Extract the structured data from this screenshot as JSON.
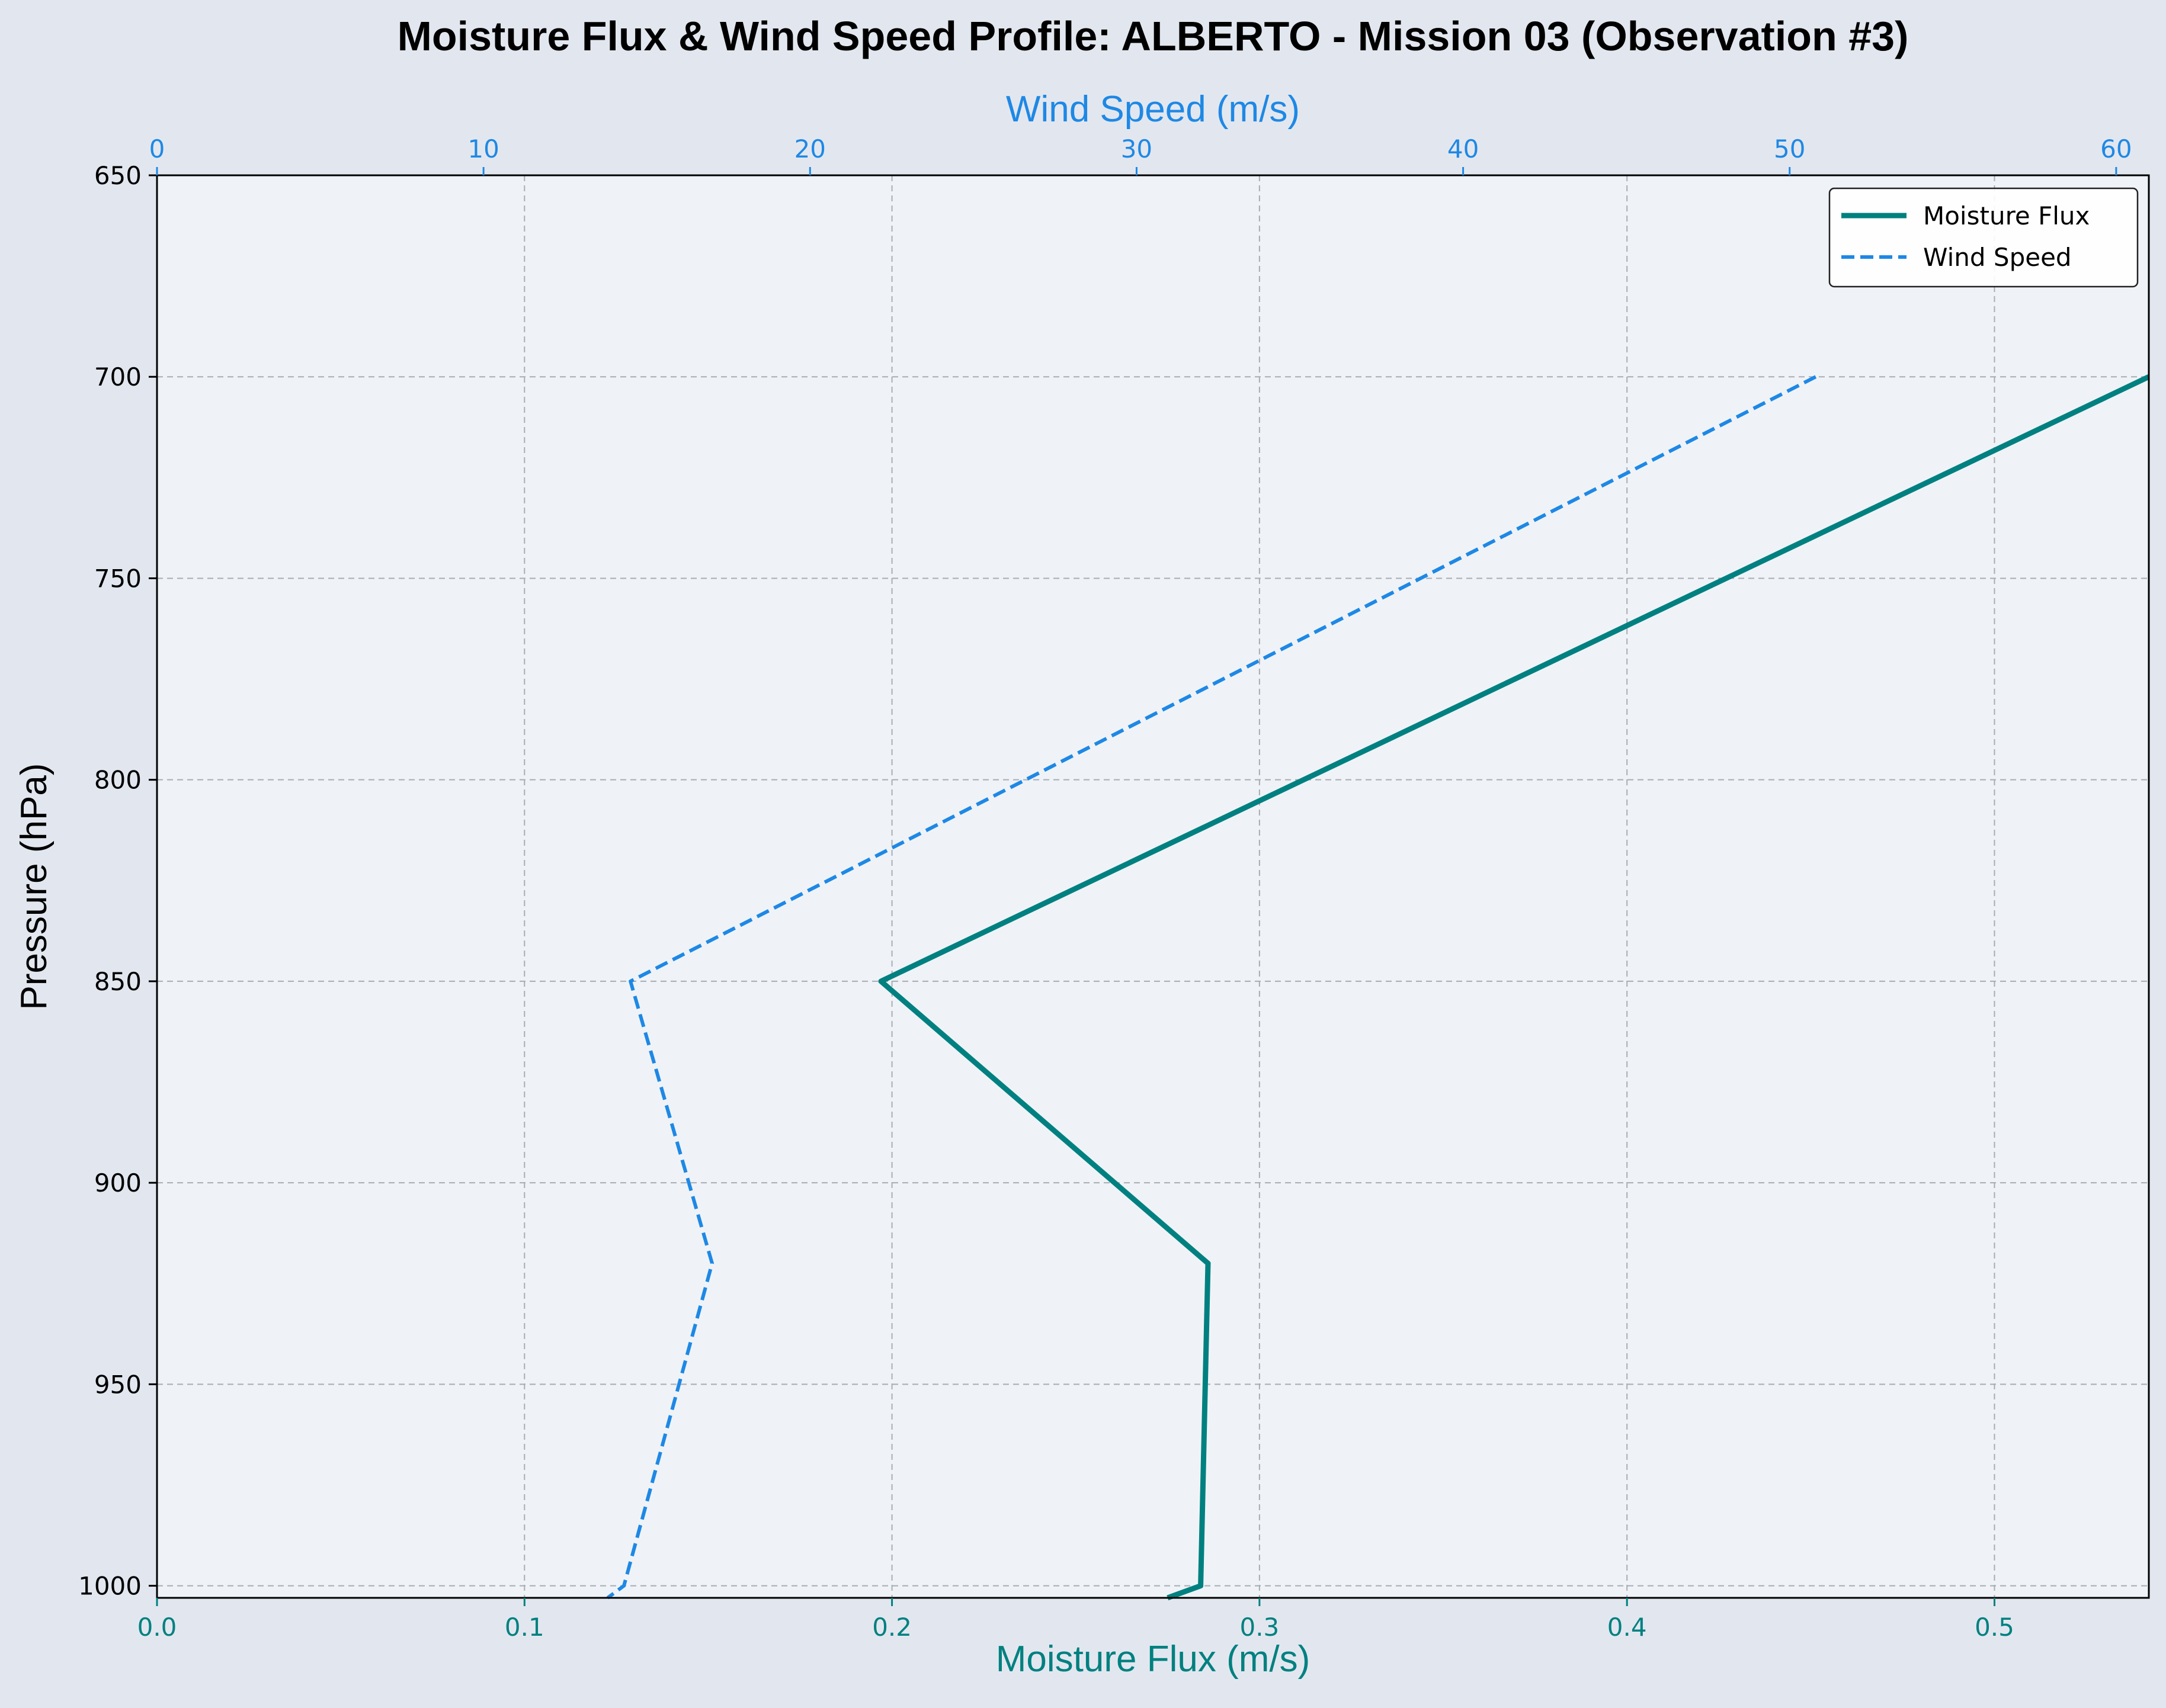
{
  "chart_data": {
    "type": "line",
    "title": "Moisture Flux & Wind Speed Profile: ALBERTO - Mission 03 (Observation #3)",
    "y_axis": {
      "label": "Pressure (hPa)",
      "range": [
        1003,
        650
      ],
      "inverted": true,
      "ticks": [
        "650",
        "700",
        "750",
        "800",
        "850",
        "900",
        "950",
        "1000"
      ],
      "tick_values": [
        650,
        700,
        750,
        800,
        850,
        900,
        950,
        1000
      ]
    },
    "x_axis_bottom": {
      "label": "Moisture Flux (m/s)",
      "range": [
        0,
        0.542
      ],
      "ticks": [
        "0.0",
        "0.1",
        "0.2",
        "0.3",
        "0.4",
        "0.5"
      ],
      "tick_values": [
        0,
        0.1,
        0.2,
        0.3,
        0.4,
        0.5
      ]
    },
    "x_axis_top": {
      "label": "Wind Speed (m/s)",
      "range": [
        0,
        61
      ],
      "ticks": [
        "0",
        "10",
        "20",
        "30",
        "40",
        "50",
        "60"
      ],
      "tick_values": [
        0,
        10,
        20,
        30,
        40,
        50,
        60
      ]
    },
    "grid": true,
    "legend_position": "top-right",
    "series": [
      {
        "name": "Moisture Flux",
        "axis": "bottom",
        "color": "#008080",
        "style": "solid",
        "points": [
          {
            "x": 0.542,
            "y": 700
          },
          {
            "x": 0.197,
            "y": 850
          },
          {
            "x": 0.286,
            "y": 920
          },
          {
            "x": 0.284,
            "y": 1000
          },
          {
            "x": 0.275,
            "y": 1003
          }
        ]
      },
      {
        "name": "Wind Speed",
        "axis": "top",
        "color": "#1e88e5",
        "style": "dashed",
        "points": [
          {
            "x": 50.8,
            "y": 700
          },
          {
            "x": 14.5,
            "y": 850
          },
          {
            "x": 17.0,
            "y": 920
          },
          {
            "x": 14.3,
            "y": 1000
          },
          {
            "x": 13.8,
            "y": 1003
          }
        ]
      }
    ],
    "colors": {
      "background": "#e2e7ef",
      "plot_background": "#eff3f7",
      "grid": "#a8adb3",
      "bottom_axis": "#008080",
      "top_axis": "#1e88e5"
    }
  }
}
